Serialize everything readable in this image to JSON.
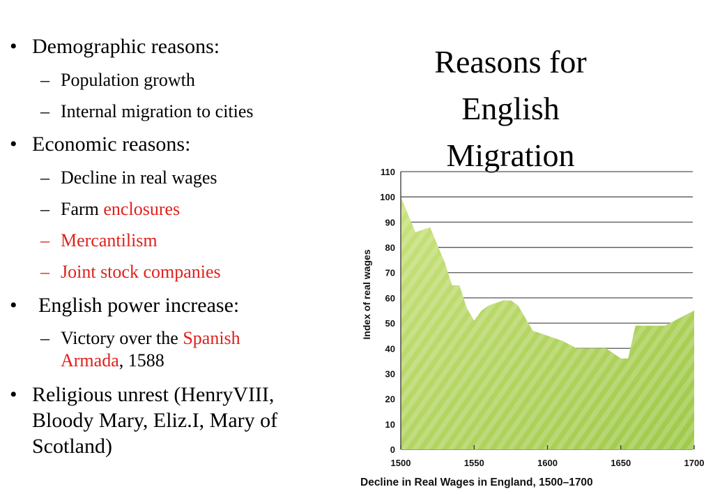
{
  "slide": {
    "title_lines": [
      "Reasons for",
      "English",
      "Migration"
    ],
    "bullets": [
      {
        "label": "Demographic reasons:",
        "subs": [
          {
            "parts": [
              "Population growth"
            ]
          },
          {
            "parts": [
              "Internal migration to cities"
            ]
          }
        ]
      },
      {
        "label": "Economic reasons:",
        "subs": [
          {
            "parts": [
              "Decline in real wages"
            ]
          },
          {
            "parts": [
              "Farm ",
              "enclosures"
            ]
          },
          {
            "parts": [
              "Mercantilism"
            ]
          },
          {
            "parts": [
              "Joint stock companies"
            ]
          }
        ]
      },
      {
        "label": "English power increase:",
        "subs": [
          {
            "parts": [
              "Victory over the ",
              "Spanish",
              "Armada",
              ", 1588"
            ]
          }
        ]
      },
      {
        "label_lines": [
          "Religious unrest (HenryVIII,",
          "Bloody Mary, Eliz.I, Mary of",
          "Scotland)"
        ]
      }
    ],
    "bullet_char": "•",
    "dash_char": "–",
    "accent_color": "#e0201b"
  },
  "chart_data": {
    "type": "area",
    "title": "Decline in Real Wages in England, 1500–1700",
    "xlabel": "",
    "ylabel": "Index of real wages",
    "xlim": [
      1500,
      1700
    ],
    "ylim": [
      0,
      110
    ],
    "x_ticks": [
      1500,
      1550,
      1600,
      1650,
      1700
    ],
    "y_ticks": [
      0,
      10,
      20,
      30,
      40,
      50,
      60,
      70,
      80,
      90,
      100,
      110
    ],
    "grid": true,
    "fill_color": "#b9d86a",
    "x": [
      1500,
      1510,
      1515,
      1520,
      1530,
      1535,
      1540,
      1545,
      1550,
      1555,
      1560,
      1570,
      1575,
      1580,
      1590,
      1600,
      1610,
      1620,
      1630,
      1640,
      1645,
      1650,
      1655,
      1660,
      1670,
      1680,
      1690,
      1700
    ],
    "values": [
      100,
      86,
      87,
      88,
      74,
      65,
      65,
      56,
      51,
      55,
      57,
      59,
      59,
      57,
      47,
      45,
      43,
      40,
      40,
      40,
      38,
      36,
      36,
      49,
      49,
      49,
      52,
      55
    ]
  }
}
